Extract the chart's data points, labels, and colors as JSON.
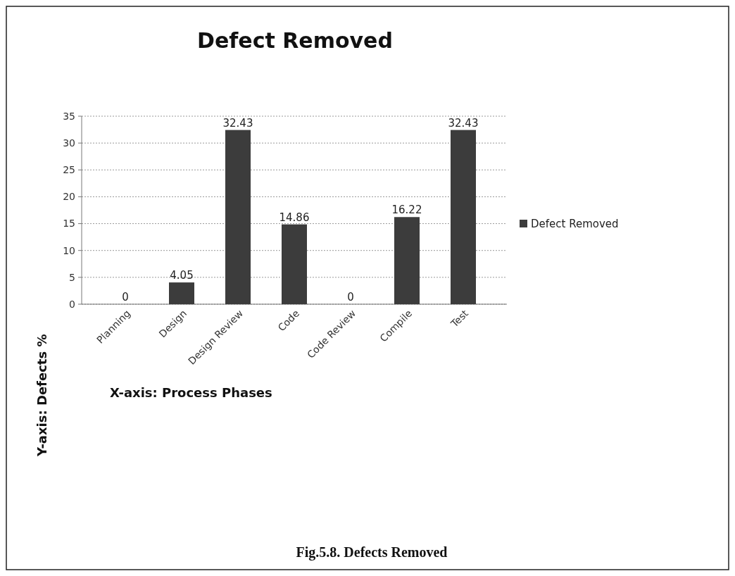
{
  "chart_data": {
    "type": "bar",
    "title": "Defect Removed",
    "xlabel": "X-axis: Process Phases",
    "ylabel": "Y-axis: Defects %",
    "categories": [
      "Planning",
      "Design",
      "Design Review",
      "Code",
      "Code Review",
      "Compile",
      "Test"
    ],
    "series": [
      {
        "name": "Defect Removed",
        "color": "#3c3c3c",
        "values": [
          0,
          4.05,
          32.43,
          14.86,
          0,
          16.22,
          32.43
        ]
      }
    ],
    "ylim": [
      0,
      35
    ],
    "yticks": [
      0,
      5,
      10,
      15,
      20,
      25,
      30,
      35
    ],
    "grid": "y",
    "legend": "right",
    "data_labels": true,
    "annotations": [
      "Fig.5.8. Defects Removed"
    ]
  }
}
